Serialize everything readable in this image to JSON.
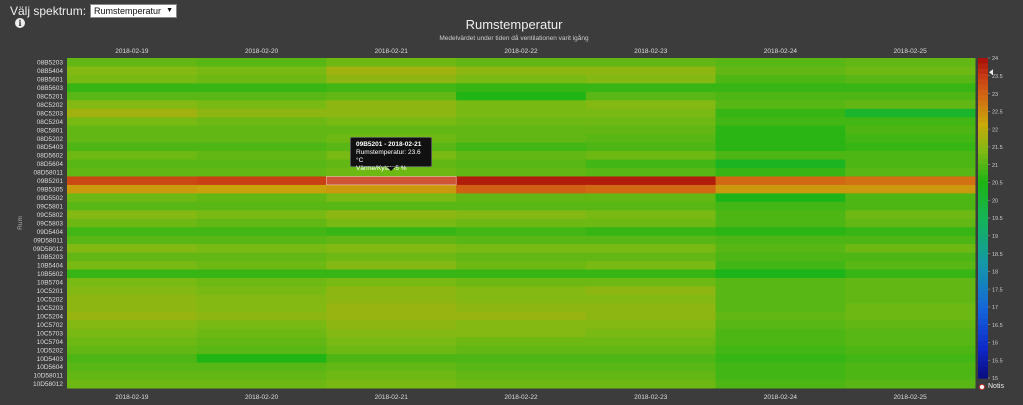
{
  "header": {
    "spectrum_label": "Välj spektrum:",
    "spectrum_selected": "Rumstemperatur",
    "info_icon": "info-icon"
  },
  "notis_label": "Notis",
  "tooltip": {
    "title": "09B5201 - 2018-02-21",
    "line1": "Rumstemperatur: 23.6 °C",
    "line2": "Värme/Kyla: -5 %"
  },
  "chart_data": {
    "type": "heatmap",
    "title": "Rumstemperatur",
    "subtitle": "Medelvärdet under tiden då ventilationen varit igång",
    "xlabel": "",
    "ylabel": "Rum",
    "x": [
      "2018-02-19",
      "2018-02-20",
      "2018-02-21",
      "2018-02-22",
      "2018-02-23",
      "2018-02-24",
      "2018-02-25"
    ],
    "y": [
      "08B5203",
      "08B5404",
      "08B5601",
      "08B5603",
      "08C5201",
      "08C5202",
      "08C5203",
      "08C5204",
      "08C5801",
      "08D5202",
      "08D5403",
      "08D5602",
      "08D5604",
      "08D58011",
      "09B5201",
      "09B5305",
      "09D5502",
      "09C5801",
      "09C5802",
      "09C5803",
      "09D5404",
      "09D58011",
      "09D58012",
      "10B5203",
      "10B5404",
      "10B5602",
      "10B5704",
      "10C5201",
      "10C5202",
      "10C5203",
      "10C5204",
      "10C5702",
      "10C5703",
      "10C5704",
      "10D5202",
      "10D5403",
      "10D5604",
      "10D58011",
      "10D58012"
    ],
    "values": [
      [
        21.2,
        21.1,
        21.3,
        21.2,
        21.2,
        21.1,
        21.2
      ],
      [
        21.5,
        21.4,
        21.8,
        21.6,
        21.6,
        21.2,
        21.3
      ],
      [
        21.4,
        21.3,
        21.6,
        21.4,
        21.5,
        21.0,
        21.1
      ],
      [
        20.8,
        20.8,
        20.9,
        20.8,
        20.8,
        20.8,
        20.8
      ],
      [
        21.1,
        21.1,
        21.2,
        20.6,
        21.1,
        21.0,
        21.0
      ],
      [
        21.5,
        21.4,
        21.6,
        21.4,
        21.5,
        21.1,
        21.2
      ],
      [
        21.8,
        21.6,
        21.6,
        21.4,
        21.4,
        20.8,
        20.2
      ],
      [
        21.4,
        21.3,
        21.4,
        21.3,
        21.3,
        20.9,
        20.9
      ],
      [
        21.2,
        21.2,
        21.2,
        21.2,
        21.2,
        20.7,
        21.0
      ],
      [
        21.2,
        21.2,
        21.3,
        21.2,
        21.1,
        20.7,
        20.9
      ],
      [
        21.0,
        21.0,
        21.1,
        20.9,
        21.0,
        20.7,
        20.8
      ],
      [
        21.3,
        21.2,
        21.4,
        21.2,
        21.3,
        21.0,
        21.0
      ],
      [
        21.1,
        21.1,
        21.2,
        21.1,
        20.9,
        20.4,
        21.0
      ],
      [
        21.2,
        21.2,
        21.3,
        21.2,
        21.1,
        20.8,
        21.1
      ],
      [
        23.4,
        23.5,
        23.6,
        23.9,
        23.9,
        23.0,
        22.9
      ],
      [
        22.4,
        22.3,
        22.4,
        23.1,
        23.0,
        22.4,
        22.4
      ],
      [
        21.3,
        21.2,
        21.4,
        21.2,
        21.2,
        20.5,
        21.0
      ],
      [
        21.1,
        21.1,
        21.1,
        21.1,
        21.1,
        20.9,
        21.0
      ],
      [
        21.5,
        21.4,
        21.6,
        21.5,
        21.4,
        21.0,
        21.3
      ],
      [
        21.3,
        21.2,
        21.4,
        21.3,
        21.3,
        21.0,
        21.2
      ],
      [
        20.9,
        20.9,
        20.8,
        20.9,
        20.8,
        20.7,
        20.8
      ],
      [
        21.1,
        21.1,
        21.2,
        21.1,
        21.1,
        21.0,
        21.0
      ],
      [
        21.5,
        21.4,
        21.5,
        21.4,
        21.4,
        21.1,
        21.3
      ],
      [
        21.2,
        21.2,
        21.3,
        21.2,
        21.2,
        21.0,
        21.0
      ],
      [
        21.4,
        21.3,
        21.5,
        21.3,
        21.4,
        20.9,
        21.1
      ],
      [
        20.8,
        20.8,
        20.8,
        20.8,
        20.8,
        20.5,
        20.8
      ],
      [
        21.4,
        21.3,
        21.4,
        21.3,
        21.3,
        21.1,
        21.2
      ],
      [
        21.5,
        21.4,
        21.6,
        21.5,
        21.6,
        21.1,
        21.2
      ],
      [
        21.6,
        21.5,
        21.6,
        21.5,
        21.5,
        21.1,
        21.2
      ],
      [
        21.6,
        21.5,
        21.7,
        21.6,
        21.6,
        21.1,
        21.3
      ],
      [
        21.7,
        21.6,
        21.7,
        21.7,
        21.6,
        21.2,
        21.3
      ],
      [
        21.5,
        21.4,
        21.6,
        21.5,
        21.5,
        21.1,
        21.2
      ],
      [
        21.4,
        21.3,
        21.5,
        21.5,
        21.4,
        21.0,
        21.1
      ],
      [
        21.3,
        21.2,
        21.4,
        21.3,
        21.3,
        21.0,
        21.1
      ],
      [
        21.2,
        21.1,
        21.3,
        21.2,
        21.2,
        20.9,
        21.0
      ],
      [
        21.0,
        20.6,
        21.0,
        21.0,
        21.0,
        20.8,
        20.9
      ],
      [
        21.1,
        21.1,
        21.2,
        21.1,
        21.1,
        20.9,
        21.0
      ],
      [
        21.2,
        21.2,
        21.3,
        21.2,
        21.2,
        20.9,
        21.0
      ],
      [
        21.3,
        21.3,
        21.4,
        21.3,
        21.3,
        21.0,
        21.1
      ]
    ],
    "colorscale": {
      "min": 15,
      "max": 24,
      "ticks": [
        24,
        23.5,
        23,
        22.5,
        22,
        21.5,
        21,
        20.5,
        20,
        19.5,
        19,
        18.5,
        18,
        17.5,
        17,
        16.5,
        16,
        15.5,
        15
      ],
      "tick_labels": [
        "24",
        "23.5",
        "23",
        "22.5",
        "22",
        "21.5",
        "21",
        "20.5",
        "20",
        "19.5",
        "19",
        "18.5",
        "18",
        "17.5",
        "17",
        "16.5",
        "16",
        "15.5",
        "15"
      ],
      "current_marker": 23.6
    },
    "grid": false
  }
}
